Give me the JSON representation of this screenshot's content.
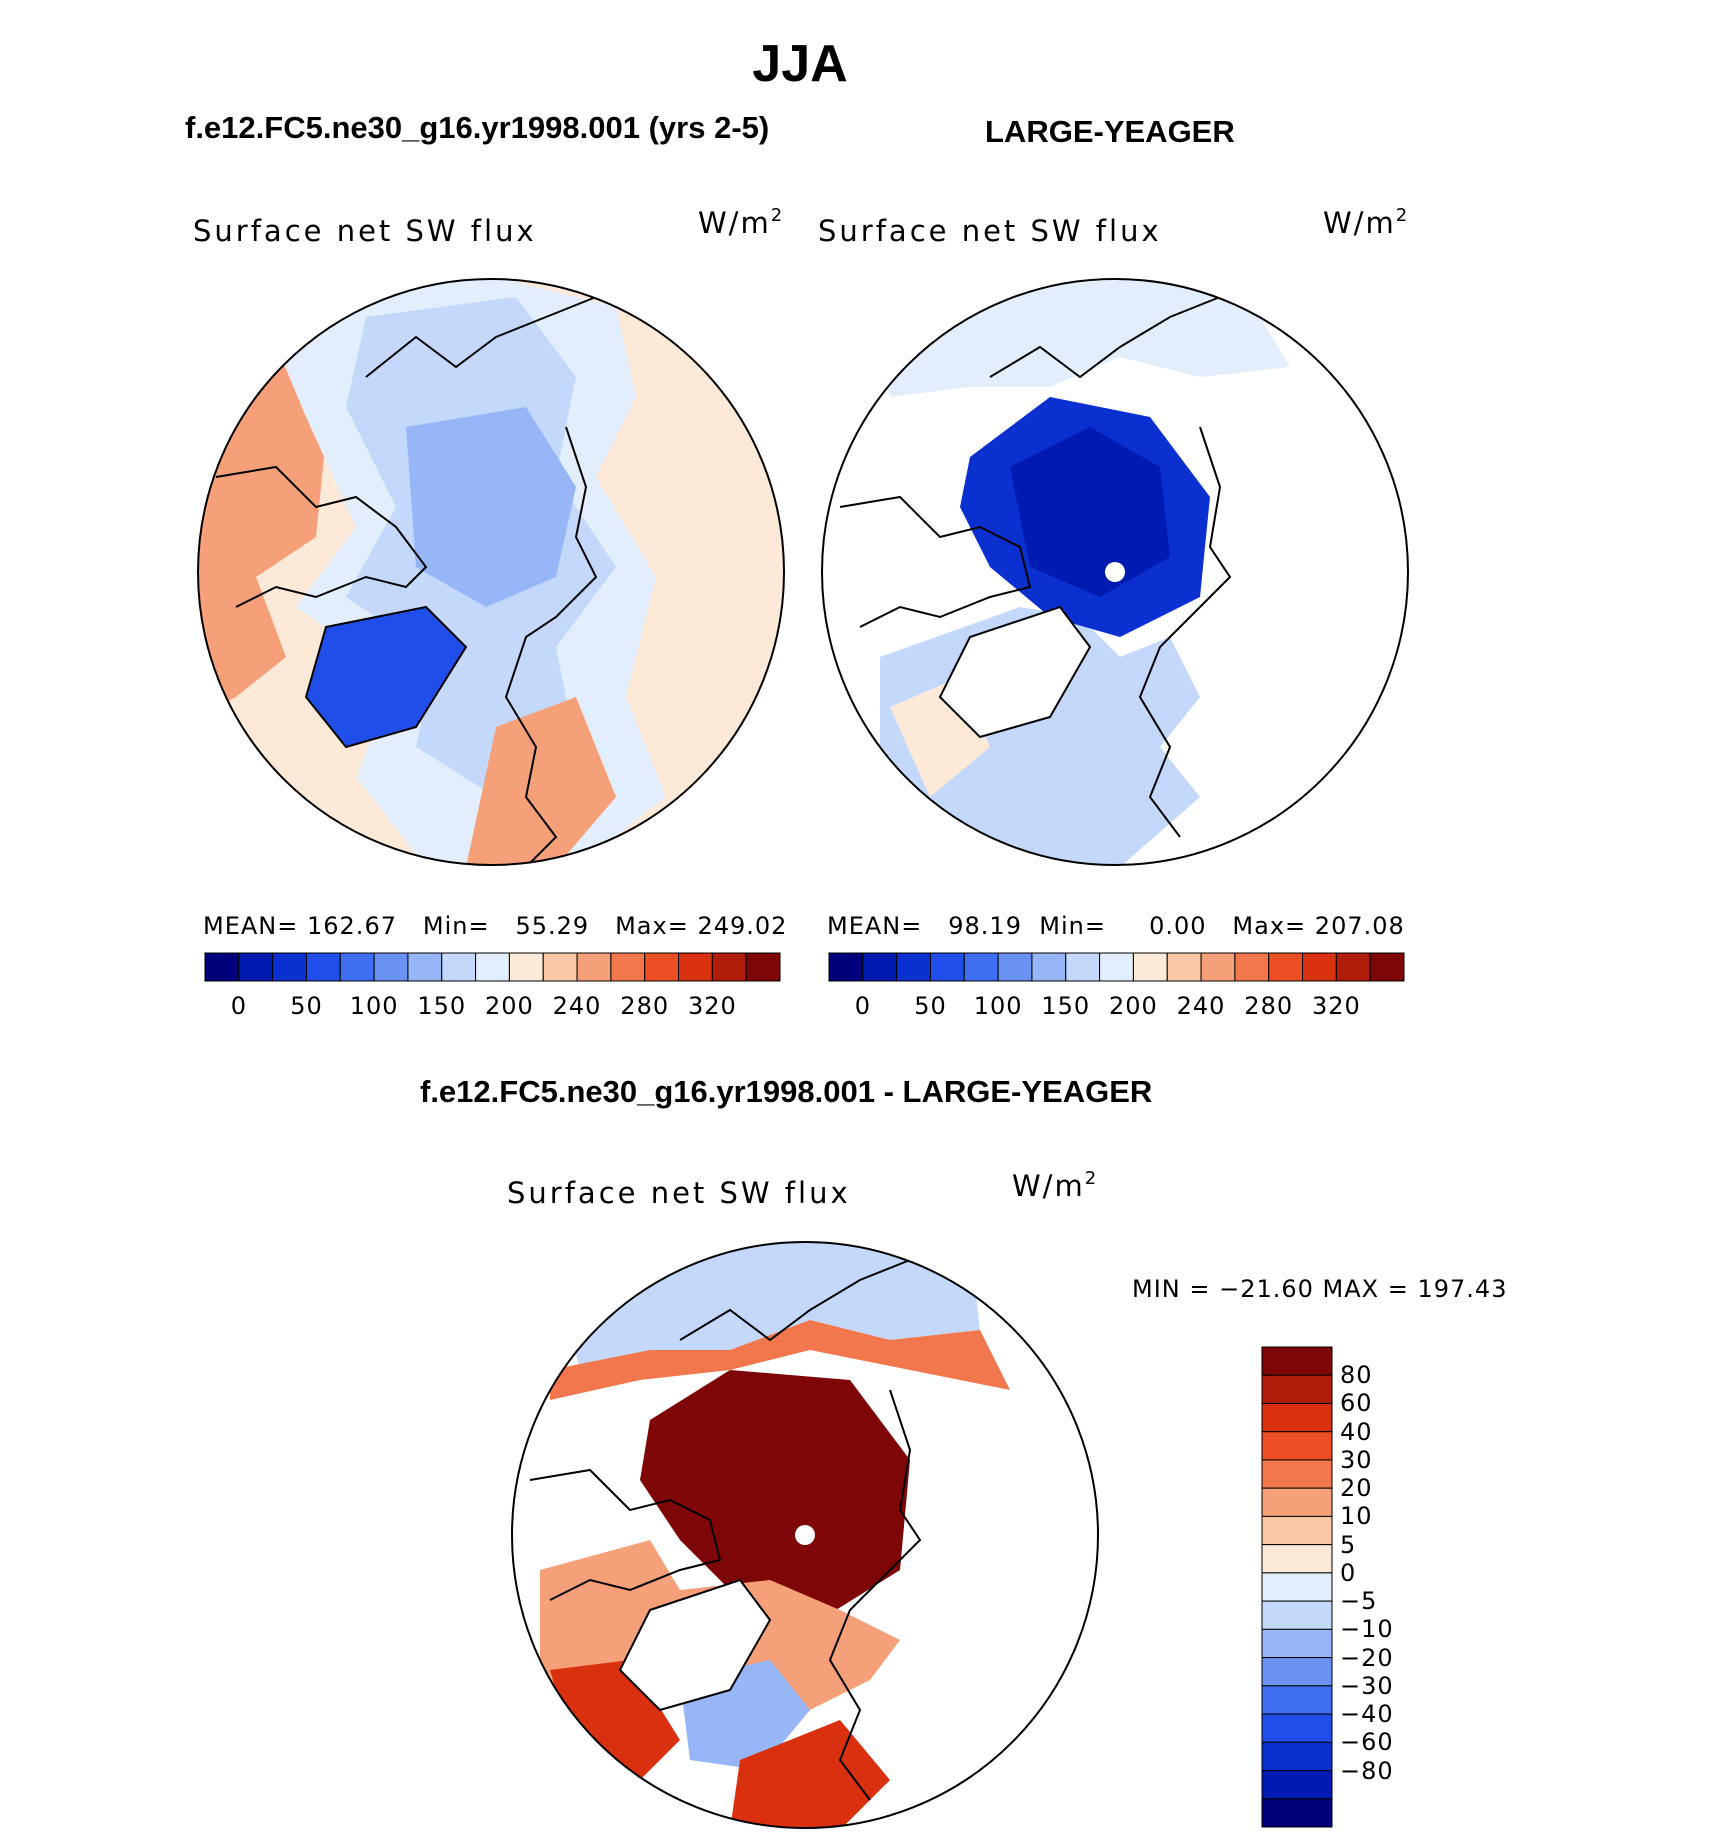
{
  "page_title": "JJA",
  "panels": [
    {
      "case_title": "f.e12.FC5.ne30_g16.yr1998.001 (yrs 2-5)",
      "var_label": "Surface net SW flux",
      "units": {
        "base": "W/m",
        "exp": "2"
      },
      "stats": {
        "mean_label": "MEAN=",
        "mean": "162.67",
        "min_label": "Min=",
        "min": "55.29",
        "max_label": "Max=",
        "max": "249.02"
      }
    },
    {
      "case_title": "LARGE-YEAGER",
      "var_label": "Surface net SW flux",
      "units": {
        "base": "W/m",
        "exp": "2"
      },
      "stats": {
        "mean_label": "MEAN=",
        "mean": "98.19",
        "min_label": "Min=",
        "min": "0.00",
        "max_label": "Max=",
        "max": "207.08"
      }
    }
  ],
  "abs_colorbar": {
    "colors": [
      "#00007a",
      "#001bb2",
      "#0a30d0",
      "#1f4fe8",
      "#3f6ef0",
      "#6a92f4",
      "#97b6f8",
      "#c4d8fb",
      "#e3eefc",
      "#fde9d8",
      "#fac7a6",
      "#f6a07a",
      "#f3774c",
      "#ec4f24",
      "#d9310f",
      "#b01c0a",
      "#7e0606"
    ],
    "tick_labels": [
      "0",
      "50",
      "100",
      "150",
      "200",
      "240",
      "280",
      "320"
    ]
  },
  "diff_panel": {
    "title": "f.e12.FC5.ne30_g16.yr1998.001 - LARGE-YEAGER",
    "var_label": "Surface net SW flux",
    "units": {
      "base": "W/m",
      "exp": "2"
    },
    "minmax": "MIN = −21.60 MAX = 197.43",
    "colorbar": {
      "colors": [
        "#7e0606",
        "#b01c0a",
        "#d9310f",
        "#ec4f24",
        "#f3774c",
        "#f6a07a",
        "#fac7a6",
        "#fde9d8",
        "#e3eefc",
        "#c4d8fb",
        "#97b6f8",
        "#6a92f4",
        "#3f6ef0",
        "#1f4fe8",
        "#0a30d0",
        "#001bb2",
        "#00007a"
      ],
      "tick_labels": [
        "80",
        "60",
        "40",
        "30",
        "20",
        "10",
        "5",
        "0",
        "−5",
        "−10",
        "−20",
        "−30",
        "−40",
        "−60",
        "−80"
      ]
    }
  },
  "palette": {
    "land_white": "#ffffff",
    "coast_line": "#000000",
    "deep_blue": "#0a30d0",
    "light_blue": "#c4d8fb",
    "mid_blue": "#97b6f8",
    "peach": "#fde9d8",
    "salmon": "#f6a07a",
    "dark_red": "#7e0606"
  }
}
